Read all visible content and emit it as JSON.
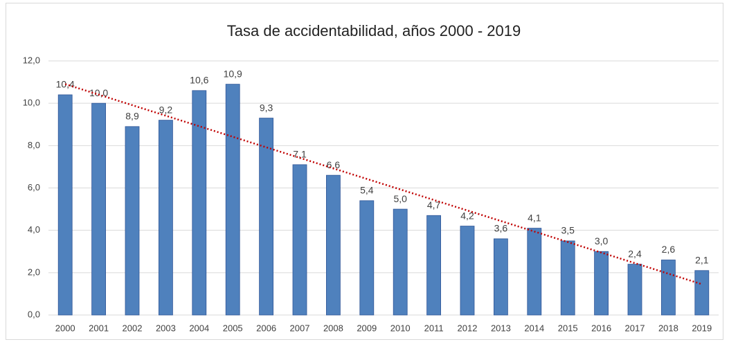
{
  "chart_data": {
    "type": "bar",
    "title": "Tasa de accidentabilidad, años 2000 - 2019",
    "categories": [
      "2000",
      "2001",
      "2002",
      "2003",
      "2004",
      "2005",
      "2006",
      "2007",
      "2008",
      "2009",
      "2010",
      "2011",
      "2012",
      "2013",
      "2014",
      "2015",
      "2016",
      "2017",
      "2018",
      "2019"
    ],
    "values": [
      10.4,
      10.0,
      8.9,
      9.2,
      10.6,
      10.9,
      9.3,
      7.1,
      6.6,
      5.4,
      5.0,
      4.7,
      4.2,
      3.6,
      4.1,
      3.5,
      3.0,
      2.4,
      2.6,
      2.1
    ],
    "value_labels": [
      "10,4",
      "10,0",
      "8,9",
      "9,2",
      "10,6",
      "10,9",
      "9,3",
      "7,1",
      "6,6",
      "5,4",
      "5,0",
      "4,7",
      "4,2",
      "3,6",
      "4,1",
      "3,5",
      "3,0",
      "2,4",
      "2,6",
      "2,1"
    ],
    "color": "#4f81bd",
    "ylim": [
      0,
      12
    ],
    "yticks": [
      {
        "value": 0,
        "label": "0,0"
      },
      {
        "value": 2,
        "label": "2,0"
      },
      {
        "value": 4,
        "label": "4,0"
      },
      {
        "value": 6,
        "label": "6,0"
      },
      {
        "value": 8,
        "label": "8,0"
      },
      {
        "value": 10,
        "label": "10,0"
      },
      {
        "value": 12,
        "label": "12,0"
      }
    ],
    "grid": true,
    "trendline": {
      "type": "linear",
      "color": "#c00000"
    }
  }
}
